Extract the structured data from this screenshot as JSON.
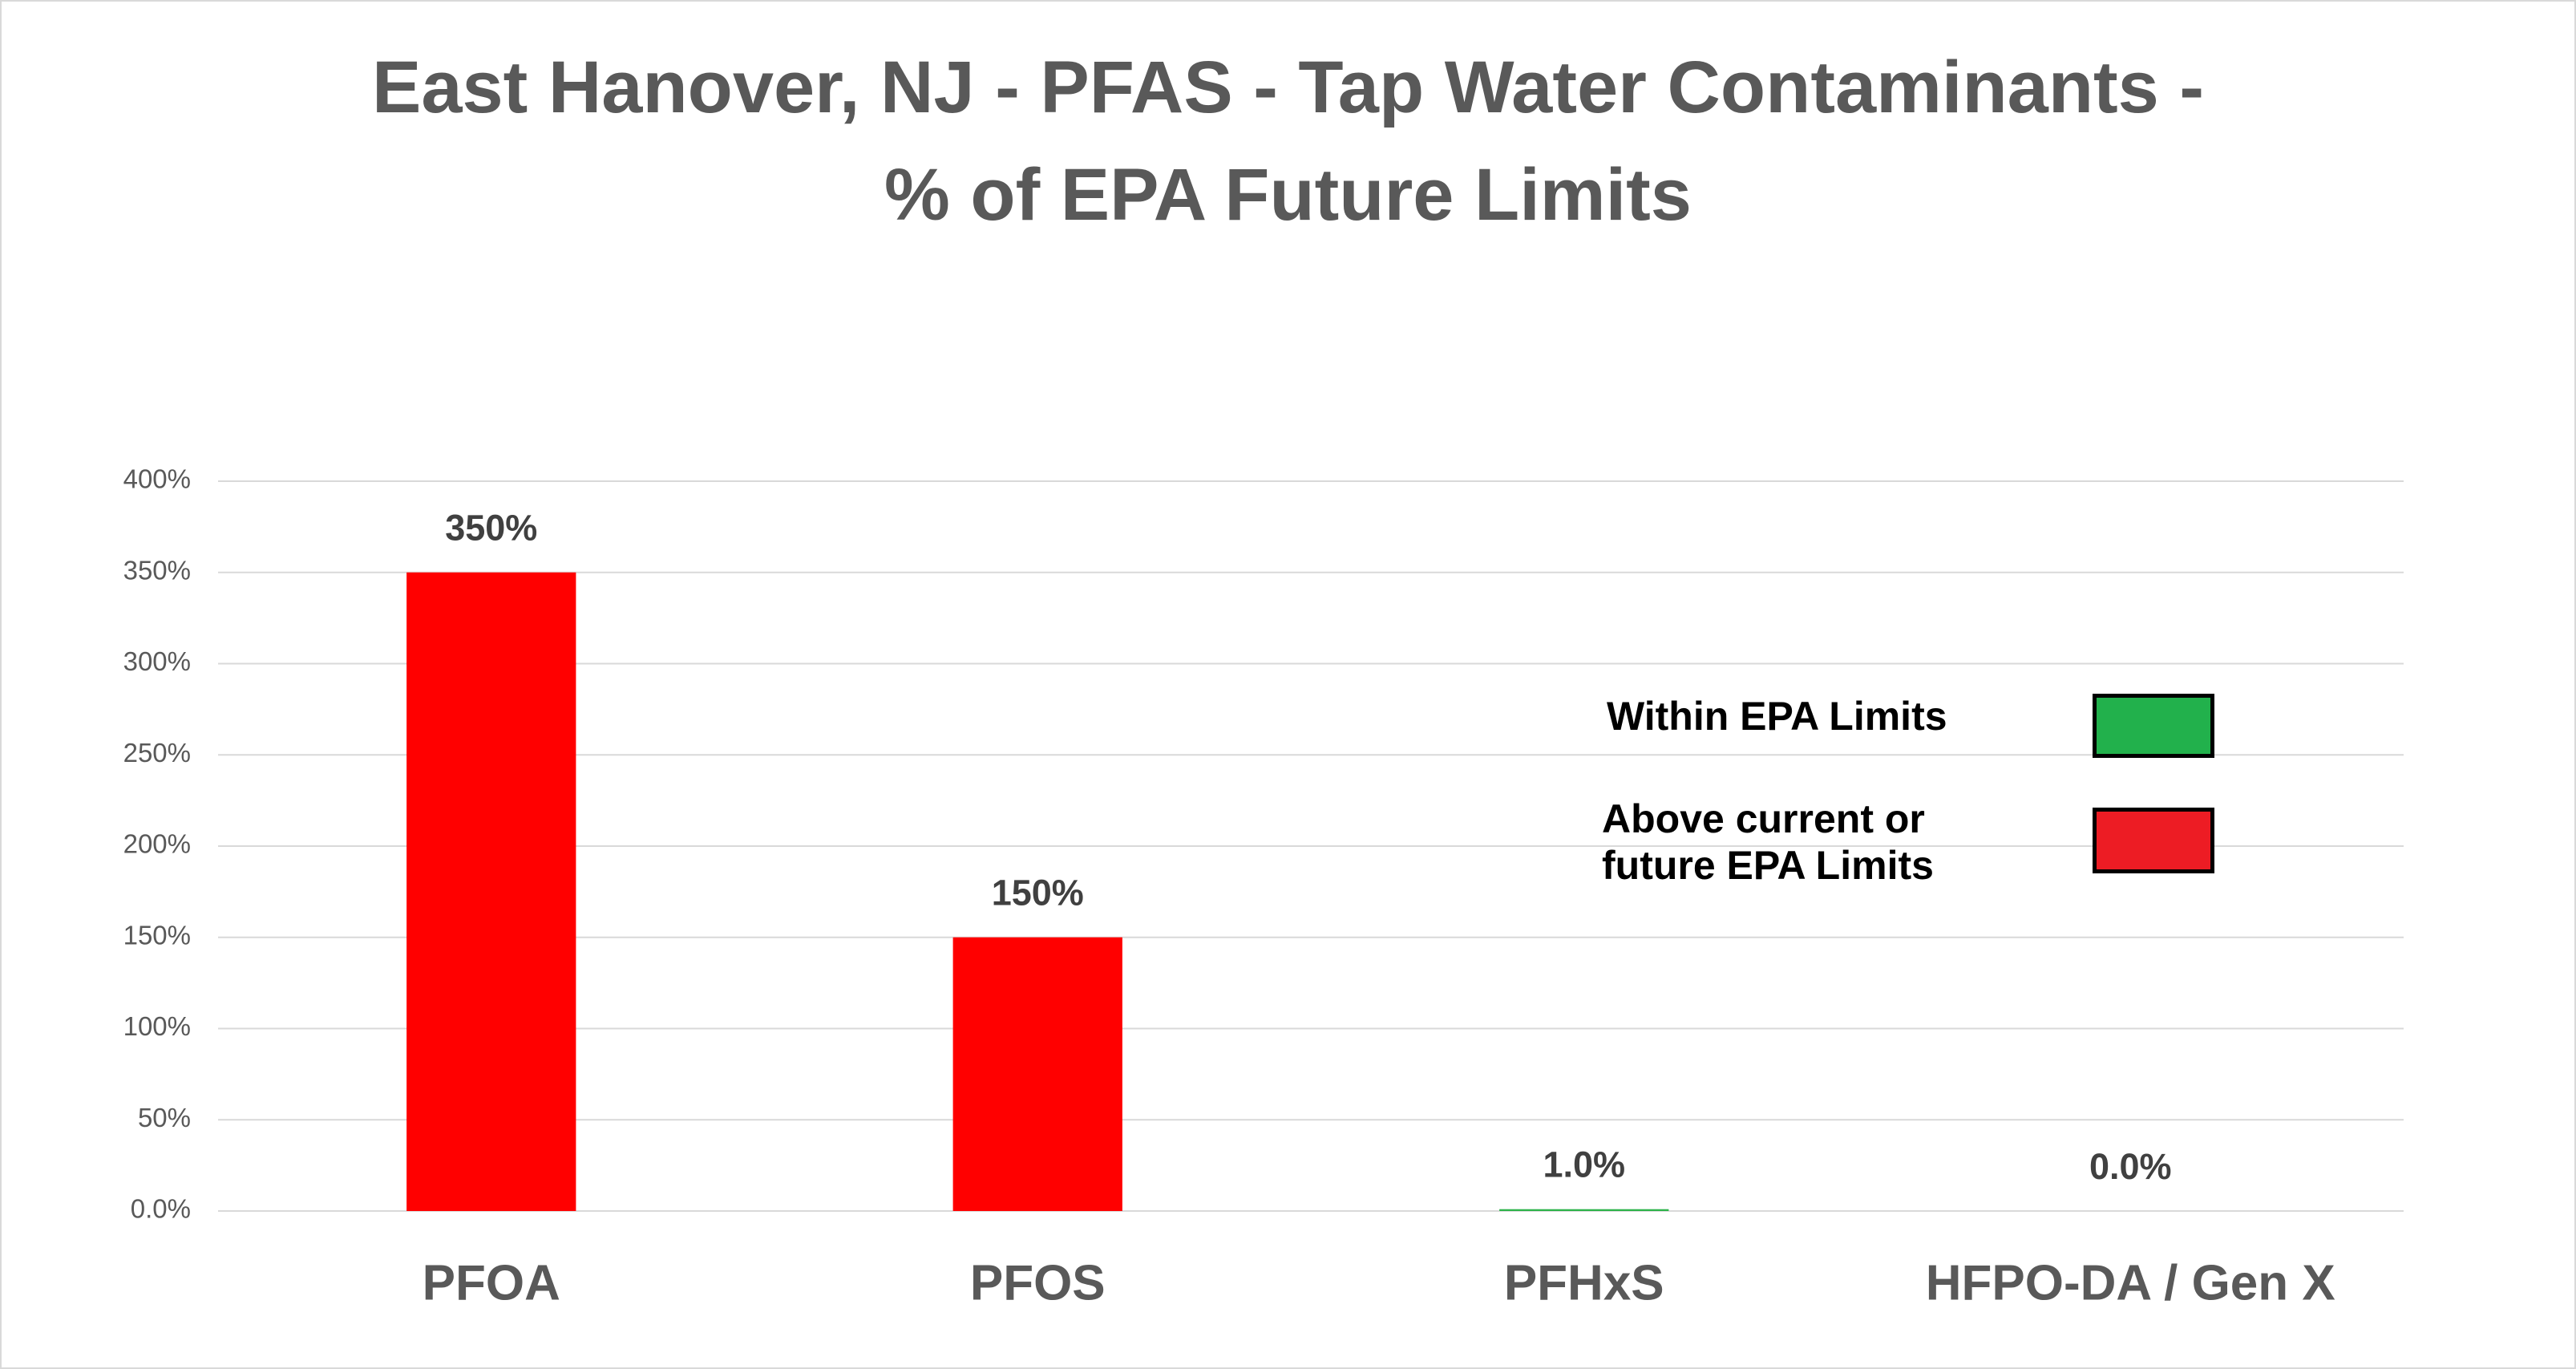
{
  "chart_data": {
    "type": "bar",
    "title": "East Hanover, NJ - PFAS - Tap Water Contaminants - % of EPA Future Limits",
    "categories": [
      "PFOA",
      "PFOS",
      "PFHxS",
      "HFPO-DA / Gen X"
    ],
    "values": [
      350,
      150,
      1,
      0
    ],
    "value_labels": [
      "350%",
      "150%",
      "1.0%",
      "0.0%"
    ],
    "colors": [
      "#ff0000",
      "#ff0000",
      "#2db34a",
      "#2db34a"
    ],
    "ylim": [
      0,
      400
    ],
    "yticks": [
      {
        "value": 0,
        "label": "0.0%"
      },
      {
        "value": 50,
        "label": "50%"
      },
      {
        "value": 100,
        "label": "100%"
      },
      {
        "value": 150,
        "label": "150%"
      },
      {
        "value": 200,
        "label": "200%"
      },
      {
        "value": 250,
        "label": "250%"
      },
      {
        "value": 300,
        "label": "300%"
      },
      {
        "value": 350,
        "label": "350%"
      },
      {
        "value": 400,
        "label": "400%"
      }
    ],
    "grid": true,
    "legend": [
      {
        "label": "Within EPA Limits",
        "color": "#22b14c"
      },
      {
        "label": "Above current or future EPA Limits",
        "color": "#ed1c24"
      }
    ]
  }
}
